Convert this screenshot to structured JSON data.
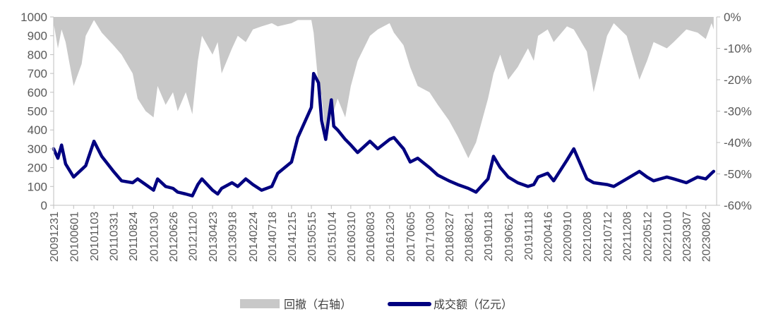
{
  "chart_data": {
    "type": "area+line",
    "title": "",
    "xlabel": "",
    "ylabel": "",
    "y_left": {
      "ylim": [
        0,
        1000
      ],
      "ticks": [
        "0",
        "100",
        "200",
        "300",
        "400",
        "500",
        "600",
        "700",
        "800",
        "900",
        "1000"
      ]
    },
    "y_right": {
      "ylim": [
        -60,
        0
      ],
      "ticks": [
        "0%",
        "-10%",
        "-20%",
        "-30%",
        "-40%",
        "-50%",
        "-60%"
      ]
    },
    "x_ticks": [
      "20091231",
      "20100601",
      "20101103",
      "20110331",
      "20110824",
      "20120130",
      "20120626",
      "20121120",
      "20130423",
      "20130918",
      "20140224",
      "20140718",
      "20141215",
      "20150515",
      "20151014",
      "20160310",
      "20160803",
      "20161230",
      "20170605",
      "20171030",
      "20180327",
      "20180821",
      "20190118",
      "20190621",
      "20191118",
      "20200416",
      "20200910",
      "20210208",
      "20210712",
      "20211208",
      "20220512",
      "20221010",
      "20230307",
      "20230802"
    ],
    "grid": false,
    "legend": "bottom-center",
    "series": [
      {
        "name": "回撤（右轴）",
        "axis": "right",
        "kind": "area",
        "color": "#c8c8c8",
        "x": [
          "20091231",
          "20100201",
          "20100301",
          "20100401",
          "20100601",
          "20100801",
          "20100901",
          "20101103",
          "20110101",
          "20110331",
          "20110601",
          "20110824",
          "20111001",
          "20111201",
          "20120130",
          "20120301",
          "20120501",
          "20120626",
          "20120801",
          "20121001",
          "20121120",
          "20130101",
          "20130201",
          "20130423",
          "20130601",
          "20130701",
          "20130918",
          "20131101",
          "20140101",
          "20140224",
          "20140501",
          "20140718",
          "20140901",
          "20141215",
          "20150201",
          "20150515",
          "20150601",
          "20150708",
          "20150801",
          "20150901",
          "20151014",
          "20151101",
          "20151201",
          "20160128",
          "20160310",
          "20160501",
          "20160803",
          "20161001",
          "20161230",
          "20170201",
          "20170415",
          "20170605",
          "20170801",
          "20171030",
          "20180101",
          "20180327",
          "20180601",
          "20180821",
          "20181019",
          "20190118",
          "20190301",
          "20190421",
          "20190621",
          "20190901",
          "20191118",
          "20200101",
          "20200203",
          "20200416",
          "20200601",
          "20200910",
          "20201101",
          "20210208",
          "20210401",
          "20210712",
          "20210901",
          "20211208",
          "20220315",
          "20220512",
          "20220701",
          "20221010",
          "20221201",
          "20230307",
          "20230601",
          "20230802",
          "20230915",
          "20231001"
        ],
        "values": [
          -2,
          -10,
          -4,
          -8,
          -22,
          -15,
          -6,
          -1,
          -5,
          -9,
          -12,
          -18,
          -26,
          -30,
          -32,
          -22,
          -28,
          -24,
          -30,
          -24,
          -31,
          -14,
          -6,
          -12,
          -8,
          -18,
          -10,
          -6,
          -8,
          -4,
          -3,
          -2,
          -3,
          -2,
          -1,
          -1,
          -5,
          -22,
          -25,
          -38,
          -28,
          -30,
          -26,
          -32,
          -22,
          -14,
          -6,
          -4,
          -2,
          -5,
          -9,
          -16,
          -22,
          -24,
          -28,
          -33,
          -38,
          -45,
          -40,
          -26,
          -18,
          -12,
          -20,
          -16,
          -10,
          -14,
          -6,
          -4,
          -8,
          -3,
          -4,
          -11,
          -24,
          -6,
          -2,
          -6,
          -20,
          -14,
          -8,
          -10,
          -8,
          -4,
          -5,
          -7,
          -2,
          -4
        ]
      },
      {
        "name": "成交额（亿元）",
        "axis": "left",
        "kind": "line",
        "color": "#000080",
        "x": [
          "20091231",
          "20100201",
          "20100301",
          "20100401",
          "20100601",
          "20100801",
          "20100901",
          "20101103",
          "20110101",
          "20110331",
          "20110601",
          "20110824",
          "20111001",
          "20111201",
          "20120130",
          "20120301",
          "20120501",
          "20120626",
          "20120801",
          "20121001",
          "20121120",
          "20130101",
          "20130201",
          "20130423",
          "20130601",
          "20130701",
          "20130918",
          "20131101",
          "20140101",
          "20140224",
          "20140501",
          "20140718",
          "20140901",
          "20141215",
          "20150201",
          "20150515",
          "20150601",
          "20150708",
          "20150801",
          "20150901",
          "20151014",
          "20151101",
          "20151201",
          "20160128",
          "20160310",
          "20160501",
          "20160803",
          "20161001",
          "20161230",
          "20170201",
          "20170415",
          "20170605",
          "20170801",
          "20171030",
          "20180101",
          "20180327",
          "20180601",
          "20180821",
          "20181019",
          "20190118",
          "20190301",
          "20190421",
          "20190621",
          "20190901",
          "20191118",
          "20200101",
          "20200203",
          "20200416",
          "20200601",
          "20200910",
          "20201101",
          "20210208",
          "20210401",
          "20210712",
          "20210901",
          "20211208",
          "20220315",
          "20220512",
          "20220701",
          "20221010",
          "20221201",
          "20230307",
          "20230601",
          "20230802",
          "20230915",
          "20231001"
        ],
        "values": [
          300,
          250,
          320,
          220,
          150,
          190,
          210,
          340,
          260,
          180,
          130,
          120,
          140,
          110,
          80,
          140,
          100,
          90,
          70,
          60,
          50,
          110,
          140,
          80,
          60,
          90,
          120,
          100,
          140,
          110,
          80,
          100,
          170,
          230,
          360,
          520,
          700,
          650,
          450,
          350,
          560,
          420,
          400,
          350,
          320,
          280,
          340,
          300,
          350,
          360,
          300,
          230,
          250,
          200,
          160,
          130,
          110,
          90,
          70,
          140,
          260,
          200,
          150,
          120,
          100,
          110,
          150,
          170,
          130,
          240,
          300,
          140,
          120,
          110,
          100,
          140,
          180,
          150,
          130,
          150,
          140,
          120,
          150,
          140,
          170,
          180
        ]
      }
    ]
  }
}
